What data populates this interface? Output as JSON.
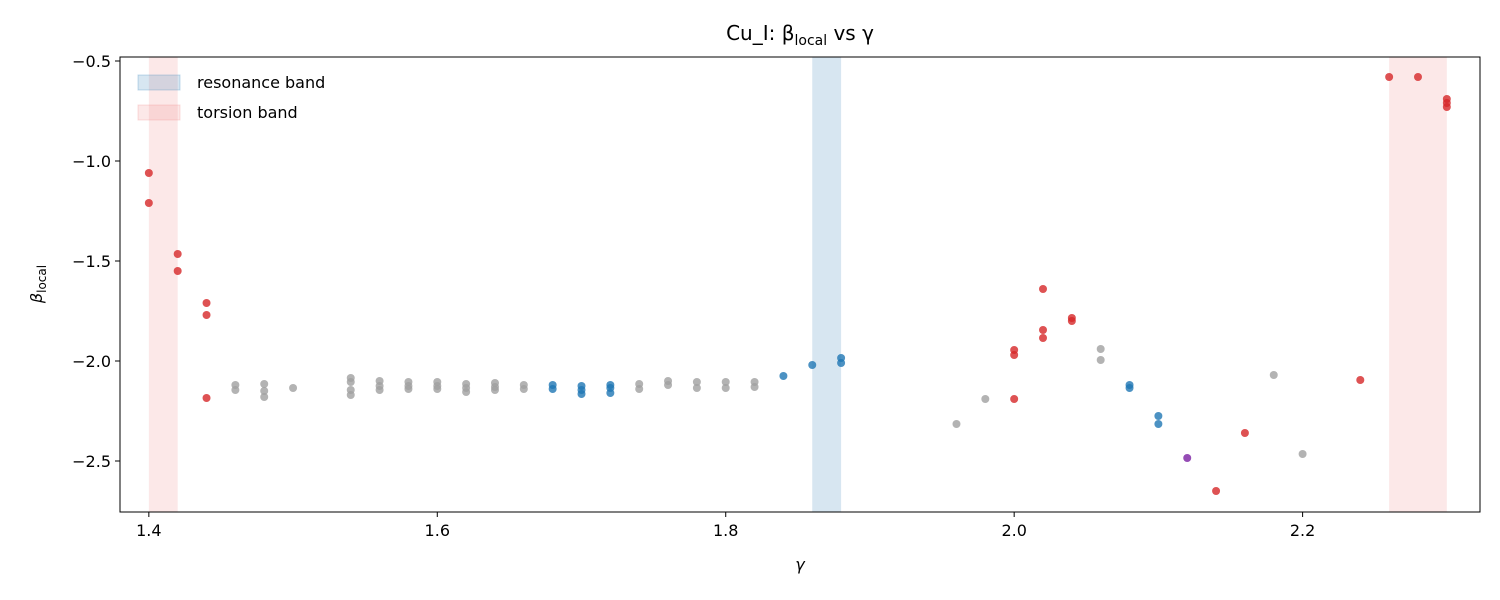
{
  "chart_data": {
    "type": "scatter",
    "title": [
      "Cu_I: β",
      "local",
      " vs γ"
    ],
    "xlabel": "γ",
    "ylabel": [
      "β",
      "local"
    ],
    "xlim": [
      1.38,
      2.323
    ],
    "ylim": [
      -2.755,
      -0.48
    ],
    "xticks": [
      1.4,
      1.6,
      1.8,
      {
        "value": 2.0,
        "label": "2.0"
      },
      2.2
    ],
    "yticks": [
      {
        "value": -0.5,
        "label": "−0.5"
      },
      {
        "value": -1.0,
        "label": "−1.0"
      },
      {
        "value": -1.5,
        "label": "−1.5"
      },
      {
        "value": -2.0,
        "label": "−2.0"
      },
      {
        "value": -2.5,
        "label": "−2.5"
      }
    ],
    "legend": "upper left",
    "bands": [
      {
        "label": "resonance band",
        "color": "#1f77b4",
        "ranges": [
          [
            1.86,
            1.88
          ]
        ]
      },
      {
        "label": "torsion band",
        "color": "#f08080",
        "ranges": [
          [
            1.4,
            1.42
          ],
          [
            2.26,
            2.3
          ]
        ]
      }
    ],
    "series": [
      {
        "color": "#a0a0a0",
        "x": [
          1.46,
          1.46,
          1.48,
          1.48,
          1.48,
          1.5,
          1.54,
          1.54,
          1.54,
          1.54,
          1.56,
          1.56,
          1.56,
          1.58,
          1.58,
          1.58,
          1.6,
          1.6,
          1.6,
          1.62,
          1.62,
          1.62,
          1.64,
          1.64,
          1.64,
          1.66,
          1.66,
          1.74,
          1.74,
          1.76,
          1.76,
          1.78,
          1.78,
          1.8,
          1.8,
          1.82,
          1.82,
          1.96,
          1.98,
          2.06,
          2.06,
          2.18,
          2.2
        ],
        "values": [
          -2.12,
          -2.145,
          -2.115,
          -2.15,
          -2.18,
          -2.135,
          -2.085,
          -2.105,
          -2.145,
          -2.17,
          -2.1,
          -2.125,
          -2.145,
          -2.105,
          -2.125,
          -2.14,
          -2.105,
          -2.125,
          -2.14,
          -2.115,
          -2.135,
          -2.155,
          -2.11,
          -2.13,
          -2.145,
          -2.12,
          -2.14,
          -2.115,
          -2.14,
          -2.1,
          -2.12,
          -2.105,
          -2.135,
          -2.105,
          -2.135,
          -2.105,
          -2.13,
          -2.315,
          -2.19,
          -1.94,
          -1.995,
          -2.07,
          -2.465
        ]
      },
      {
        "color": "#1f77b4",
        "x": [
          1.68,
          1.68,
          1.7,
          1.7,
          1.7,
          1.72,
          1.72,
          1.72,
          1.84,
          1.86,
          1.88,
          1.88,
          2.08,
          2.08,
          2.1,
          2.1
        ],
        "values": [
          -2.12,
          -2.14,
          -2.125,
          -2.145,
          -2.165,
          -2.12,
          -2.135,
          -2.16,
          -2.075,
          -2.02,
          -1.985,
          -2.01,
          -2.12,
          -2.135,
          -2.275,
          -2.315
        ]
      },
      {
        "color": "#d62728",
        "x": [
          1.4,
          1.4,
          1.42,
          1.42,
          1.44,
          1.44,
          1.44,
          2.0,
          2.0,
          2.0,
          2.02,
          2.02,
          2.02,
          2.04,
          2.04,
          2.14,
          2.16,
          2.24,
          2.26,
          2.28,
          2.3,
          2.3,
          2.3
        ],
        "values": [
          -1.06,
          -1.21,
          -1.465,
          -1.55,
          -1.71,
          -1.77,
          -2.185,
          -1.945,
          -1.97,
          -2.19,
          -1.64,
          -1.845,
          -1.885,
          -1.785,
          -1.8,
          -2.65,
          -2.36,
          -2.095,
          -0.58,
          -0.58,
          -0.69,
          -0.71,
          -0.73
        ]
      },
      {
        "color": "#7b1fa2",
        "x": [
          2.12
        ],
        "values": [
          -2.485
        ]
      }
    ]
  }
}
